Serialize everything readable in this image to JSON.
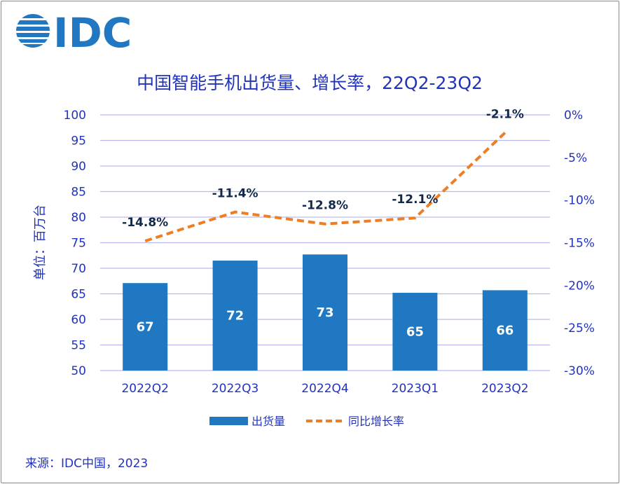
{
  "logo": {
    "text": "IDC",
    "color": "#1f78c1"
  },
  "source": "来源：IDC中国，2023",
  "chart_data": {
    "type": "bar+line",
    "title": "中国智能手机出货量、增长率，22Q2-23Q2",
    "ylabel": "单位：百万台",
    "categories": [
      "2022Q2",
      "2022Q3",
      "2022Q4",
      "2023Q1",
      "2023Q2"
    ],
    "ylim": [
      50,
      100
    ],
    "yticks": [
      "50",
      "55",
      "60",
      "65",
      "70",
      "75",
      "80",
      "85",
      "90",
      "95",
      "100"
    ],
    "y2lim": [
      -30,
      0
    ],
    "y2ticks": [
      "-30%",
      "-25%",
      "-20%",
      "-15%",
      "-10%",
      "-5%",
      "0%"
    ],
    "grid": true,
    "legend_position": "bottom",
    "series": [
      {
        "name": "出货量",
        "type": "bar",
        "axis": "left",
        "color": "#1f78c1",
        "values": [
          67.1,
          71.5,
          72.7,
          65.2,
          65.7
        ],
        "labels": [
          "67",
          "72",
          "73",
          "65",
          "66"
        ]
      },
      {
        "name": "同比增长率",
        "type": "line",
        "axis": "right",
        "color": "#ef7d22",
        "dashed": true,
        "values": [
          -14.8,
          -11.4,
          -12.8,
          -12.1,
          -2.1
        ],
        "labels": [
          "-14.8%",
          "-11.4%",
          "-12.8%",
          "-12.1%",
          "-2.1%"
        ]
      }
    ]
  }
}
